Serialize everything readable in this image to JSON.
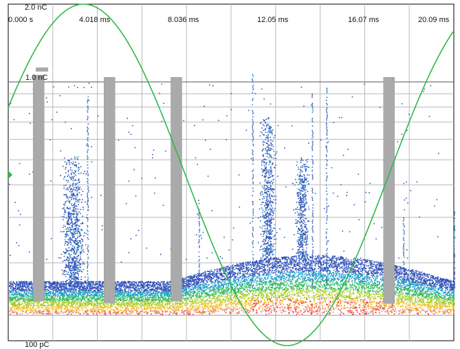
{
  "chart_data": {
    "type": "scatter",
    "title": "",
    "xlabel": "",
    "ylabel": "",
    "x_unit": "ms",
    "x_range": [
      0,
      22
    ],
    "y_scale": "log",
    "y_range_pC": [
      100,
      2000
    ],
    "x_tick_labels": [
      "0.000 s",
      "4.018 ms",
      "8.036 ms",
      "12.05 ms",
      "16.07 ms",
      "20.09 ms"
    ],
    "x_tick_values": [
      0,
      4.018,
      8.036,
      12.05,
      16.07,
      20.09
    ],
    "y_tick_labels": [
      "2.0 nC",
      "1.0 nC",
      "100 pC"
    ],
    "y_tick_values": [
      2000,
      1000,
      100
    ],
    "grid": true,
    "legend": "none",
    "reference_sine": {
      "color": "#2db84a",
      "period_ms": 20.09,
      "phase_offset_ms": -1.3,
      "label": ""
    },
    "gray_bars": [
      {
        "x_ms": 1.5,
        "top_pC": 1000,
        "bottom_pC": 205
      },
      {
        "x_ms": 5.0,
        "top_pC": 980,
        "bottom_pC": 200
      },
      {
        "x_ms": 8.3,
        "top_pC": 980,
        "bottom_pC": 205
      },
      {
        "x_ms": 18.8,
        "top_pC": 980,
        "bottom_pC": 198
      }
    ],
    "clusters": [
      {
        "x_ms": 3.2,
        "x_spread_ms": 0.9,
        "top_pC": 520,
        "density": 0.9
      },
      {
        "x_ms": 12.8,
        "x_spread_ms": 0.6,
        "top_pC": 750,
        "density": 0.7
      },
      {
        "x_ms": 14.5,
        "x_spread_ms": 0.5,
        "top_pC": 520,
        "density": 0.5
      }
    ],
    "density_colors": [
      "#3355bb",
      "#22a0c8",
      "#33bb66",
      "#aacc22",
      "#f0c020",
      "#f08050",
      "#ee3355"
    ]
  }
}
